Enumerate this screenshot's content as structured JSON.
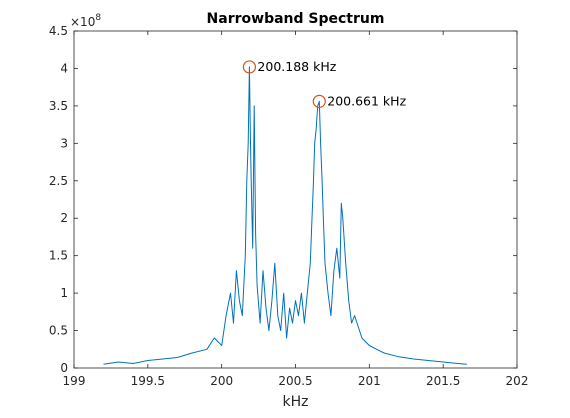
{
  "chart_data": {
    "type": "line",
    "title": "Narrowband Spectrum",
    "xlabel": "kHz",
    "ylabel": "",
    "xlim": [
      199,
      202
    ],
    "ylim": [
      0,
      450000000
    ],
    "y_exponent_label": "×10",
    "y_exponent": "8",
    "xticks": [
      199,
      199.5,
      200,
      200.5,
      201,
      201.5,
      202
    ],
    "xtick_labels": [
      "199",
      "199.5",
      "200",
      "200.5",
      "201",
      "201.5",
      "202"
    ],
    "yticks": [
      0,
      50000000,
      100000000,
      150000000,
      200000000,
      250000000,
      300000000,
      350000000,
      400000000,
      450000000
    ],
    "ytick_labels": [
      "0",
      "0.5",
      "1",
      "1.5",
      "2",
      "2.5",
      "3",
      "3.5",
      "4",
      "4.5"
    ],
    "grid": false,
    "series": [
      {
        "color": "#0072BD",
        "x_range": [
          199.2,
          201.66
        ],
        "x": [
          199.2,
          199.3,
          199.4,
          199.5,
          199.6,
          199.7,
          199.8,
          199.9,
          199.95,
          200.0,
          200.03,
          200.06,
          200.08,
          200.1,
          200.12,
          200.14,
          200.16,
          200.17,
          200.18,
          200.188,
          200.195,
          200.2,
          200.21,
          200.22,
          200.23,
          200.24,
          200.26,
          200.28,
          200.3,
          200.32,
          200.34,
          200.36,
          200.38,
          200.4,
          200.42,
          200.44,
          200.46,
          200.48,
          200.5,
          200.52,
          200.54,
          200.56,
          200.58,
          200.6,
          200.61,
          200.62,
          200.63,
          200.64,
          200.65,
          200.661,
          200.67,
          200.68,
          200.69,
          200.7,
          200.72,
          200.74,
          200.76,
          200.78,
          200.8,
          200.81,
          200.82,
          200.84,
          200.86,
          200.88,
          200.9,
          200.95,
          201.0,
          201.05,
          201.1,
          201.2,
          201.3,
          201.4,
          201.5,
          201.6,
          201.66
        ],
        "y": [
          5000000,
          8000000,
          6000000,
          10000000,
          12000000,
          14000000,
          20000000,
          25000000,
          40000000,
          30000000,
          70000000,
          100000000,
          60000000,
          130000000,
          90000000,
          70000000,
          150000000,
          250000000,
          300000000,
          402000000,
          300000000,
          250000000,
          160000000,
          350000000,
          180000000,
          110000000,
          60000000,
          130000000,
          80000000,
          50000000,
          90000000,
          140000000,
          70000000,
          50000000,
          100000000,
          40000000,
          80000000,
          60000000,
          90000000,
          70000000,
          100000000,
          60000000,
          100000000,
          140000000,
          190000000,
          240000000,
          300000000,
          320000000,
          350000000,
          356000000,
          300000000,
          250000000,
          190000000,
          140000000,
          100000000,
          70000000,
          130000000,
          160000000,
          120000000,
          220000000,
          200000000,
          140000000,
          90000000,
          60000000,
          70000000,
          40000000,
          30000000,
          25000000,
          20000000,
          15000000,
          12000000,
          10000000,
          8000000,
          6000000,
          5000000
        ]
      }
    ],
    "annotations": [
      {
        "x": 200.188,
        "y": 402000000,
        "text": "200.188 kHz"
      },
      {
        "x": 200.661,
        "y": 356000000,
        "text": "200.661 kHz"
      }
    ],
    "marker_color": "#D95319"
  }
}
